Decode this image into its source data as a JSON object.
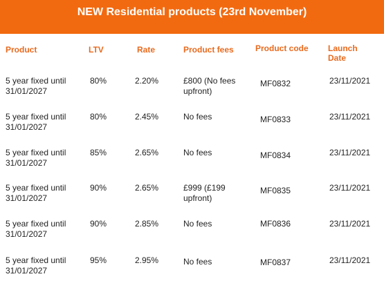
{
  "title": "NEW Residential products (23rd November)",
  "colors": {
    "banner_bg": "#f26a10",
    "header_text": "#e86a1e"
  },
  "headers": {
    "product": "Product",
    "ltv": "LTV",
    "rate": "Rate",
    "fees": "Product fees",
    "code": "Product code",
    "launch_line1": "Launch",
    "launch_line2": "Date"
  },
  "rows": [
    {
      "product_line1": "5 year fixed until",
      "product_line2": "31/01/2027",
      "ltv": "80%",
      "rate": "2.20%",
      "fees_line1": "£800 (No fees",
      "fees_line2": "upfront)",
      "code": "MF0832",
      "date": "23/11/2021"
    },
    {
      "product_line1": "5 year fixed until",
      "product_line2": "31/01/2027",
      "ltv": "80%",
      "rate": "2.45%",
      "fees_line1": "No fees",
      "fees_line2": "",
      "code": "MF0833",
      "date": "23/11/2021"
    },
    {
      "product_line1": "5 year fixed until",
      "product_line2": "31/01/2027",
      "ltv": "85%",
      "rate": "2.65%",
      "fees_line1": "No fees",
      "fees_line2": "",
      "code": "MF0834",
      "date": "23/11/2021"
    },
    {
      "product_line1": "5 year fixed until",
      "product_line2": "31/01/2027",
      "ltv": "90%",
      "rate": "2.65%",
      "fees_line1": "£999 (£199",
      "fees_line2": "upfront)",
      "code": "MF0835",
      "date": "23/11/2021"
    },
    {
      "product_line1": "5 year fixed until",
      "product_line2": "31/01/2027",
      "ltv": "90%",
      "rate": "2.85%",
      "fees_line1": "No fees",
      "fees_line2": "",
      "code": "MF0836",
      "date": "23/11/2021"
    },
    {
      "product_line1": "5 year fixed until",
      "product_line2": "31/01/2027",
      "ltv": "95%",
      "rate": "2.95%",
      "fees_line1": "No fees",
      "fees_line2": "",
      "code": "MF0837",
      "date": "23/11/2021"
    }
  ]
}
